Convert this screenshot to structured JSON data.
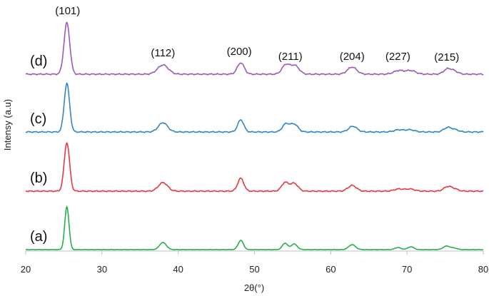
{
  "chart_data": {
    "type": "line",
    "title": "",
    "xlabel": "2θ(°)",
    "ylabel": "Intensy (a.u)",
    "xlim": [
      20,
      80
    ],
    "x_ticks": [
      20,
      30,
      40,
      50,
      60,
      70,
      80
    ],
    "grid": false,
    "legend": "none",
    "peak_labels": [
      {
        "label": "(101)",
        "x": 25.5
      },
      {
        "label": "(112)",
        "x": 38.0
      },
      {
        "label": "(200)",
        "x": 48.0
      },
      {
        "label": "(211)",
        "x": 54.7
      },
      {
        "label": "(204)",
        "x": 62.8
      },
      {
        "label": "(227)",
        "x": 68.8
      },
      {
        "label": "(215)",
        "x": 75.2
      }
    ],
    "series": [
      {
        "name": "(a)",
        "color": "#22b24c",
        "baseline": 0,
        "noise": 0.3,
        "peaks": [
          [
            25.4,
            60,
            0.28
          ],
          [
            38.0,
            10,
            0.45
          ],
          [
            48.2,
            13,
            0.35
          ],
          [
            54.0,
            9,
            0.35
          ],
          [
            55.2,
            8,
            0.4
          ],
          [
            62.8,
            7,
            0.45
          ],
          [
            68.8,
            3,
            0.4
          ],
          [
            70.5,
            4,
            0.4
          ],
          [
            75.2,
            5,
            0.45
          ],
          [
            76.2,
            2,
            0.4
          ]
        ]
      },
      {
        "name": "(b)",
        "color": "#e8373e",
        "baseline": 82,
        "noise": 0.9,
        "peaks": [
          [
            25.4,
            68,
            0.35
          ],
          [
            38.0,
            12,
            0.6
          ],
          [
            48.2,
            18,
            0.4
          ],
          [
            54.0,
            12,
            0.45
          ],
          [
            55.2,
            11,
            0.5
          ],
          [
            62.8,
            8,
            0.55
          ],
          [
            68.9,
            3,
            0.6
          ],
          [
            70.4,
            3,
            0.6
          ],
          [
            75.3,
            6,
            0.5
          ],
          [
            76.2,
            3,
            0.5
          ]
        ]
      },
      {
        "name": "(c)",
        "color": "#2f86c8",
        "baseline": 165,
        "noise": 0.9,
        "peaks": [
          [
            25.4,
            68,
            0.35
          ],
          [
            38.0,
            13,
            0.6
          ],
          [
            48.2,
            17,
            0.4
          ],
          [
            54.1,
            11,
            0.45
          ],
          [
            55.2,
            11,
            0.5
          ],
          [
            62.9,
            8,
            0.55
          ],
          [
            68.9,
            3,
            0.6
          ],
          [
            70.4,
            3,
            0.6
          ],
          [
            75.3,
            6,
            0.5
          ],
          [
            76.3,
            3,
            0.5
          ]
        ]
      },
      {
        "name": "(d)",
        "color": "#9b59c0",
        "baseline": 246,
        "noise": 1.0,
        "peaks": [
          [
            25.4,
            72,
            0.38
          ],
          [
            38.0,
            13,
            0.7
          ],
          [
            48.2,
            16,
            0.45
          ],
          [
            54.1,
            13,
            0.5
          ],
          [
            55.3,
            12,
            0.55
          ],
          [
            62.8,
            10,
            0.6
          ],
          [
            68.9,
            5,
            0.65
          ],
          [
            70.5,
            5,
            0.65
          ],
          [
            75.3,
            7,
            0.5
          ],
          [
            76.2,
            4,
            0.5
          ]
        ]
      }
    ]
  }
}
